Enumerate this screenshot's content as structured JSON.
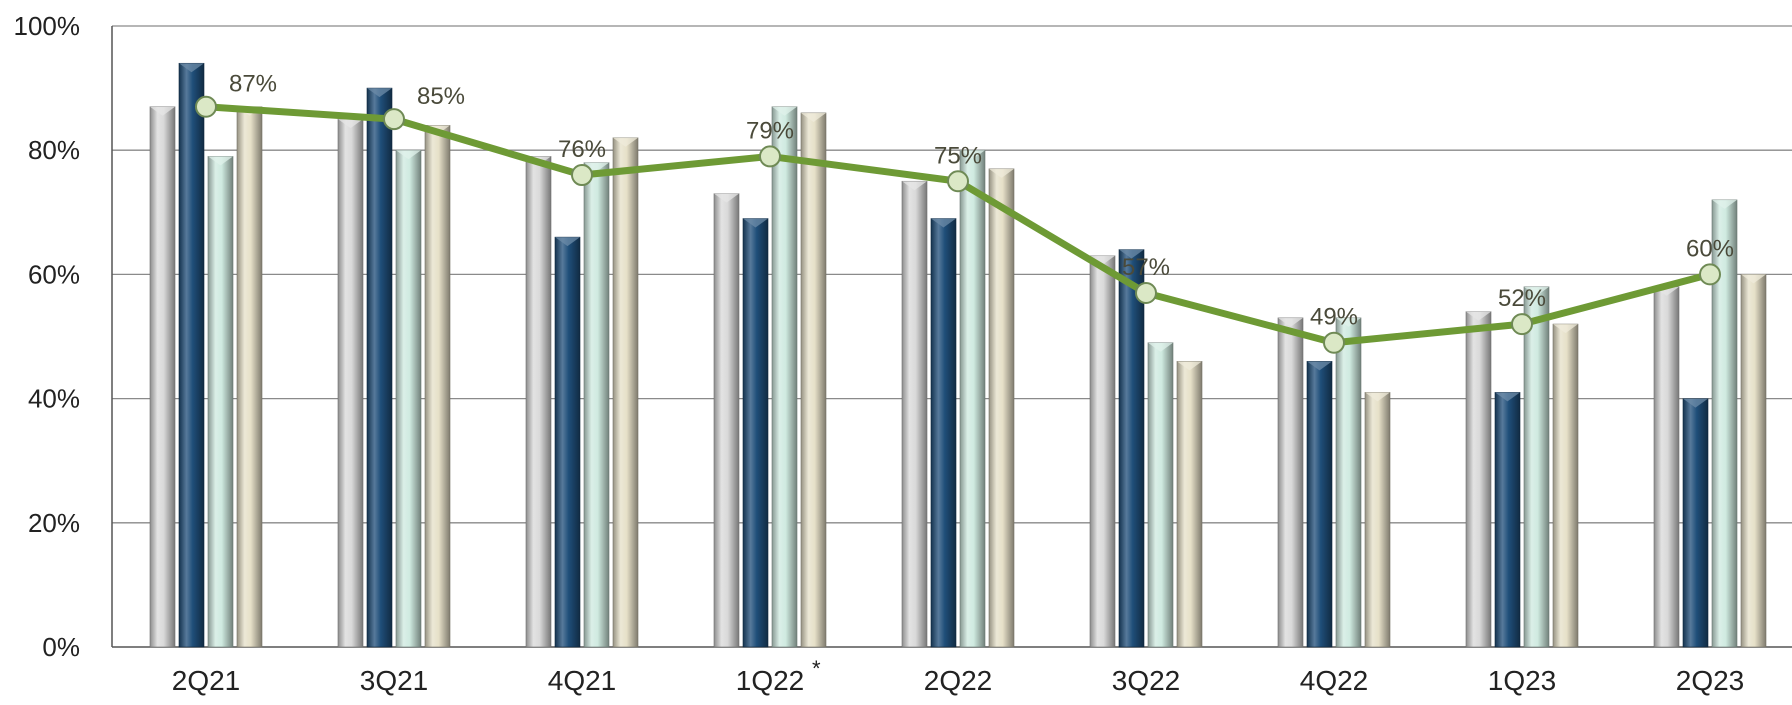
{
  "chart_data": {
    "type": "bar",
    "categories": [
      "2Q21",
      "3Q21",
      "4Q21",
      "1Q22",
      "2Q22",
      "3Q22",
      "4Q22",
      "1Q23",
      "2Q23"
    ],
    "category_footnotes": {
      "1Q22": "*"
    },
    "yticks": [
      "0%",
      "20%",
      "40%",
      "60%",
      "80%",
      "100%"
    ],
    "ylim": [
      0,
      100
    ],
    "grid": true,
    "series": [
      {
        "values": [
          87,
          85,
          79,
          73,
          75,
          63,
          53,
          54,
          58
        ],
        "color": "#d9d9d9"
      },
      {
        "values": [
          94,
          90,
          66,
          69,
          69,
          64,
          46,
          41,
          40
        ],
        "color": "#1f4e79"
      },
      {
        "values": [
          79,
          80,
          78,
          87,
          80,
          49,
          53,
          58,
          72
        ],
        "color": "#cfeae0"
      },
      {
        "values": [
          87,
          84,
          82,
          86,
          77,
          46,
          41,
          52,
          60
        ],
        "color": "#e6e0c8"
      }
    ],
    "line": {
      "values": [
        87,
        85,
        76,
        79,
        75,
        57,
        49,
        52,
        60
      ],
      "labels": [
        "87%",
        "85%",
        "76%",
        "79%",
        "75%",
        "57%",
        "49%",
        "52%",
        "60%"
      ],
      "color": "#6e9a35",
      "marker_fill": "#dbe8c6"
    }
  }
}
